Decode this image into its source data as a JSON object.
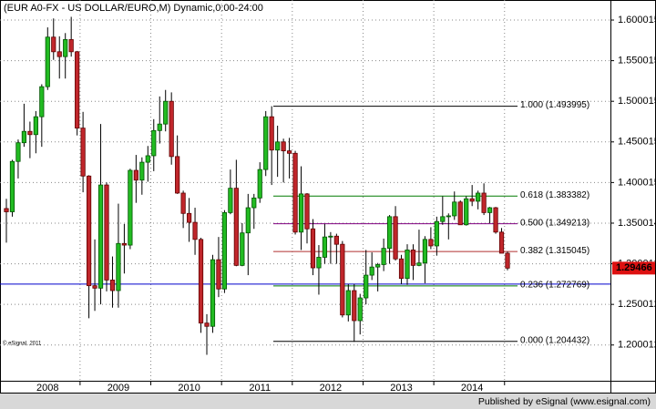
{
  "chart_data": {
    "type": "candlestick",
    "title": "(EUR A0-FX - US DOLLAR/EURO,M) Dynamic,0:00-24:00",
    "copyright": "© eSignal, 2011",
    "footer": "Published by eSignal (www.esignal.com)",
    "categories": [
      null,
      null,
      null,
      null,
      null,
      null,
      null,
      "2008",
      null,
      null,
      null,
      null,
      null,
      null,
      null,
      null,
      null,
      null,
      null,
      "2009",
      null,
      null,
      null,
      null,
      null,
      null,
      null,
      null,
      null,
      null,
      null,
      "2010",
      null,
      null,
      null,
      null,
      null,
      null,
      null,
      null,
      null,
      null,
      null,
      "2011",
      null,
      null,
      null,
      null,
      null,
      null,
      null,
      null,
      null,
      null,
      null,
      "2012",
      null,
      null,
      null,
      null,
      null,
      null,
      null,
      null,
      null,
      null,
      null,
      "2013",
      null,
      null,
      null,
      null,
      null,
      null,
      null,
      null,
      null,
      null,
      null,
      "2014",
      null,
      null,
      null,
      null,
      null,
      null
    ],
    "open": [
      1.368,
      1.364,
      1.426,
      1.449,
      1.463,
      1.459,
      1.481,
      1.518,
      1.579,
      1.561,
      1.555,
      1.576,
      1.561,
      1.467,
      1.408,
      1.273,
      1.27,
      1.397,
      1.28,
      1.267,
      1.325,
      1.323,
      1.415,
      1.403,
      1.425,
      1.433,
      1.464,
      1.472,
      1.5,
      1.432,
      1.387,
      1.362,
      1.351,
      1.33,
      1.227,
      1.223,
      1.305,
      1.269,
      1.363,
      1.393,
      1.298,
      1.338,
      1.369,
      1.381,
      1.416,
      1.481,
      1.44,
      1.45,
      1.439,
      1.436,
      1.339,
      1.386,
      1.343,
      1.295,
      1.308,
      1.333,
      1.334,
      1.324,
      1.237,
      1.267,
      1.23,
      1.258,
      1.286,
      1.296,
      1.299,
      1.319,
      1.358,
      1.306,
      1.282,
      1.317,
      1.298,
      1.301,
      1.33,
      1.322,
      1.352,
      1.358,
      1.359,
      1.376,
      1.348,
      1.38,
      1.377,
      1.387,
      1.363,
      1.369,
      1.339,
      1.313
    ],
    "high": [
      1.38,
      1.428,
      1.453,
      1.497,
      1.475,
      1.488,
      1.521,
      1.591,
      1.602,
      1.58,
      1.584,
      1.604,
      1.562,
      1.487,
      1.409,
      1.33,
      1.472,
      1.4,
      1.309,
      1.374,
      1.349,
      1.417,
      1.434,
      1.431,
      1.445,
      1.478,
      1.506,
      1.514,
      1.511,
      1.458,
      1.39,
      1.381,
      1.369,
      1.332,
      1.238,
      1.311,
      1.333,
      1.366,
      1.416,
      1.428,
      1.35,
      1.386,
      1.386,
      1.425,
      1.488,
      1.494,
      1.47,
      1.454,
      1.455,
      1.439,
      1.42,
      1.387,
      1.355,
      1.323,
      1.349,
      1.339,
      1.337,
      1.328,
      1.275,
      1.275,
      1.263,
      1.317,
      1.314,
      1.301,
      1.331,
      1.36,
      1.371,
      1.311,
      1.324,
      1.324,
      1.342,
      1.334,
      1.345,
      1.358,
      1.383,
      1.362,
      1.389,
      1.378,
      1.383,
      1.397,
      1.39,
      1.399,
      1.37,
      1.37,
      1.344,
      1.315
    ],
    "low": [
      1.326,
      1.358,
      1.405,
      1.444,
      1.43,
      1.436,
      1.444,
      1.514,
      1.551,
      1.528,
      1.528,
      1.555,
      1.458,
      1.388,
      1.233,
      1.242,
      1.25,
      1.266,
      1.246,
      1.246,
      1.288,
      1.318,
      1.375,
      1.385,
      1.401,
      1.414,
      1.448,
      1.463,
      1.422,
      1.386,
      1.344,
      1.327,
      1.311,
      1.215,
      1.188,
      1.215,
      1.259,
      1.264,
      1.361,
      1.297,
      1.297,
      1.286,
      1.343,
      1.375,
      1.408,
      1.397,
      1.407,
      1.4,
      1.405,
      1.336,
      1.317,
      1.325,
      1.286,
      1.262,
      1.3,
      1.3,
      1.3,
      1.234,
      1.229,
      1.204,
      1.213,
      1.25,
      1.28,
      1.266,
      1.291,
      1.3,
      1.304,
      1.275,
      1.274,
      1.28,
      1.297,
      1.276,
      1.318,
      1.31,
      1.348,
      1.33,
      1.354,
      1.348,
      1.347,
      1.371,
      1.367,
      1.36,
      1.35,
      1.337,
      1.313,
      1.292
    ],
    "close": [
      1.364,
      1.426,
      1.449,
      1.463,
      1.459,
      1.481,
      1.518,
      1.579,
      1.561,
      1.555,
      1.576,
      1.561,
      1.467,
      1.408,
      1.273,
      1.27,
      1.397,
      1.28,
      1.267,
      1.325,
      1.323,
      1.415,
      1.403,
      1.425,
      1.433,
      1.464,
      1.472,
      1.5,
      1.432,
      1.387,
      1.362,
      1.351,
      1.33,
      1.227,
      1.223,
      1.305,
      1.269,
      1.363,
      1.393,
      1.298,
      1.338,
      1.369,
      1.381,
      1.416,
      1.481,
      1.44,
      1.45,
      1.439,
      1.436,
      1.339,
      1.386,
      1.343,
      1.295,
      1.308,
      1.333,
      1.334,
      1.324,
      1.237,
      1.267,
      1.23,
      1.258,
      1.286,
      1.296,
      1.299,
      1.319,
      1.358,
      1.306,
      1.282,
      1.317,
      1.298,
      1.301,
      1.33,
      1.322,
      1.352,
      1.358,
      1.359,
      1.376,
      1.348,
      1.38,
      1.377,
      1.387,
      1.363,
      1.369,
      1.339,
      1.313,
      1.29466
    ],
    "up_color": "#22bb22",
    "down_color": "#c0262b",
    "ylim": [
      1.156,
      1.6247
    ],
    "yticks": [
      1.200012,
      1.250012,
      1.300012,
      1.350014,
      1.400015,
      1.450015,
      1.500015,
      1.550015,
      1.600015
    ],
    "grid": true,
    "fib_levels": [
      {
        "value": 1.493995,
        "label": "1.000 (1.493995)",
        "color": "#000000"
      },
      {
        "value": 1.383382,
        "label": "0.618 (1.383382)",
        "color": "#007a00"
      },
      {
        "value": 1.349213,
        "label": "0.500 (1.349213)",
        "color": "#800080"
      },
      {
        "value": 1.315045,
        "label": "0.382 (1.315045)",
        "color": "#b03030"
      },
      {
        "value": 1.272769,
        "label": "0.236 (1.272769)",
        "color": "#007a00"
      },
      {
        "value": 1.204432,
        "label": "0.000 (1.204432)",
        "color": "#000000"
      }
    ],
    "hline": 1.275,
    "hline_color": "#0000cc",
    "last_price": 1.29466,
    "last_price_color": "#dd1111"
  }
}
